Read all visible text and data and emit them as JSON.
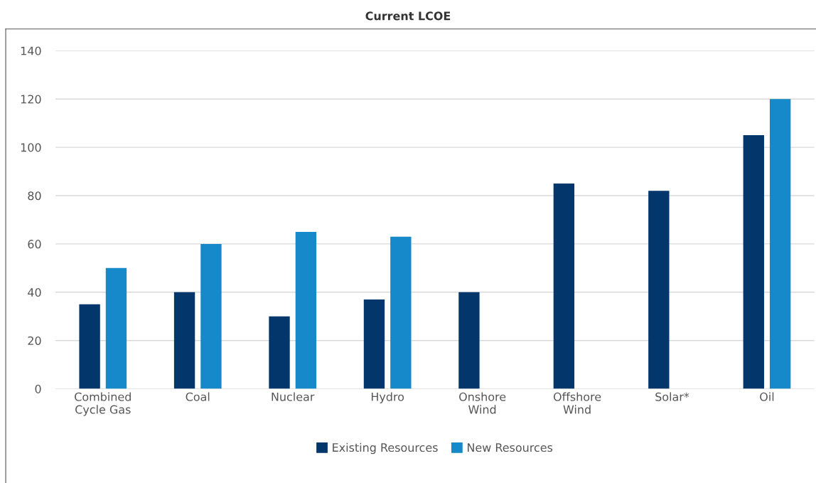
{
  "chart_data": {
    "type": "bar",
    "title": "Current LCOE",
    "categories": [
      "Combined\nCycle Gas",
      "Coal",
      "Nuclear",
      "Hydro",
      "Onshore\nWind",
      "Offshore\nWind",
      "Solar*",
      "Oil"
    ],
    "series": [
      {
        "name": "Existing Resources",
        "color": "#03376b",
        "values": [
          35,
          40,
          30,
          37,
          40,
          85,
          82,
          105
        ]
      },
      {
        "name": "New Resources",
        "color": "#1589c9",
        "values": [
          50,
          60,
          65,
          63,
          null,
          null,
          null,
          120
        ]
      }
    ],
    "ylim": [
      0,
      140
    ],
    "yticks": [
      0,
      20,
      40,
      60,
      80,
      100,
      120,
      140
    ],
    "grid": "y",
    "legend": "bottom"
  }
}
